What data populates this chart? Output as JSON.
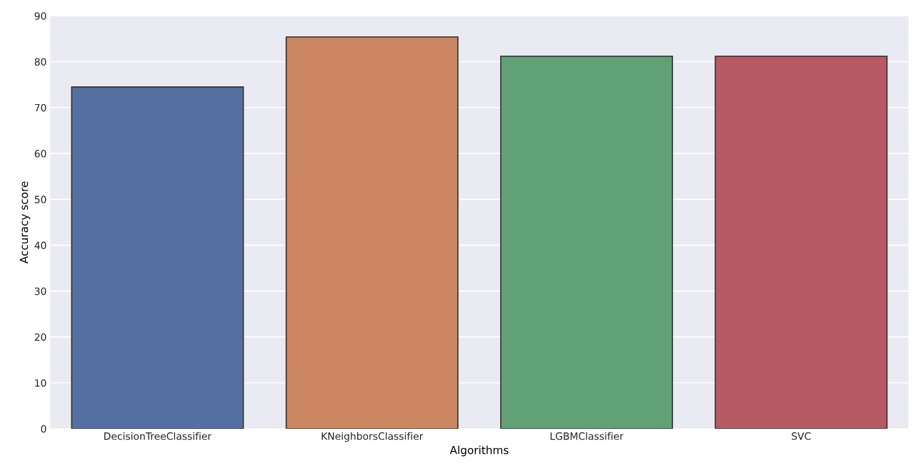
{
  "chart_data": {
    "type": "bar",
    "xlabel": "Algorithms",
    "ylabel": "Accuracy score",
    "categories": [
      "DecisionTreeClassifier",
      "KNeighborsClassifier",
      "LGBMClassifier",
      "SVC"
    ],
    "values": [
      74.5,
      85.4,
      81.2,
      81.2
    ],
    "colors": [
      "#5470a0",
      "#cc8662",
      "#60a176",
      "#b65a64"
    ],
    "ylim": [
      0,
      90
    ],
    "yticks": [
      0,
      10,
      20,
      30,
      40,
      50,
      60,
      70,
      80,
      90
    ],
    "grid": "y"
  }
}
